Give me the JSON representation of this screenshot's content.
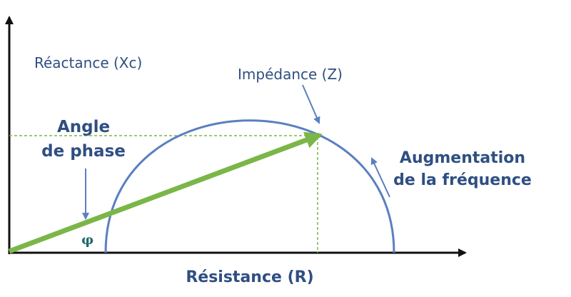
{
  "labels": {
    "y_axis": "Réactance (Xc)",
    "x_axis": "Résistance (R)",
    "impedance": "Impédance (Z)",
    "phase_angle_line1": "Angle",
    "phase_angle_line2": "de phase",
    "phase_symbol": "φ",
    "frequency_line1": "Augmentation",
    "frequency_line2": "de la fréquence"
  },
  "colors": {
    "axis": "#111111",
    "arc": "#5b7fbf",
    "vector": "#7ab648",
    "guide": "#7ab648",
    "annotation_arrow": "#5b7fbf",
    "text": "#2f4f82"
  }
}
